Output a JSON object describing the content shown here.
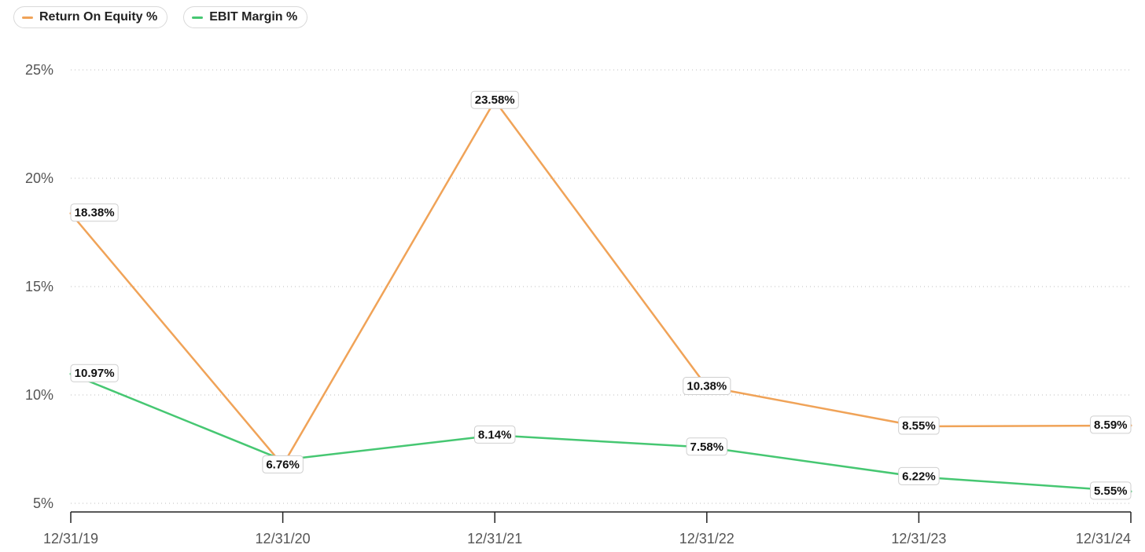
{
  "legend": {
    "items": [
      {
        "label": "Return On Equity %",
        "color": "#f0a358"
      },
      {
        "label": "EBIT Margin %",
        "color": "#46c772"
      }
    ]
  },
  "chart_data": {
    "type": "line",
    "title": "",
    "xlabel": "",
    "ylabel": "",
    "categories": [
      "12/31/19",
      "12/31/20",
      "12/31/21",
      "12/31/22",
      "12/31/23",
      "12/31/24"
    ],
    "ylim": [
      5,
      25
    ],
    "yticks": [
      5,
      10,
      15,
      20,
      25
    ],
    "ytick_labels": [
      "5%",
      "10%",
      "15%",
      "20%",
      "25%"
    ],
    "grid": "horizontal-dotted",
    "legend_position": "top-left",
    "series": [
      {
        "name": "Return On Equity %",
        "color": "#f0a358",
        "values": [
          18.38,
          6.76,
          23.58,
          10.38,
          8.55,
          8.59
        ],
        "labels": [
          "18.38%",
          "6.76%",
          "23.58%",
          "10.38%",
          "8.55%",
          "8.59%"
        ]
      },
      {
        "name": "EBIT Margin %",
        "color": "#46c772",
        "values": [
          10.97,
          7.0,
          8.14,
          7.58,
          6.22,
          5.55
        ],
        "labels": [
          "10.97%",
          "",
          "8.14%",
          "7.58%",
          "6.22%",
          "5.55%"
        ]
      }
    ]
  }
}
